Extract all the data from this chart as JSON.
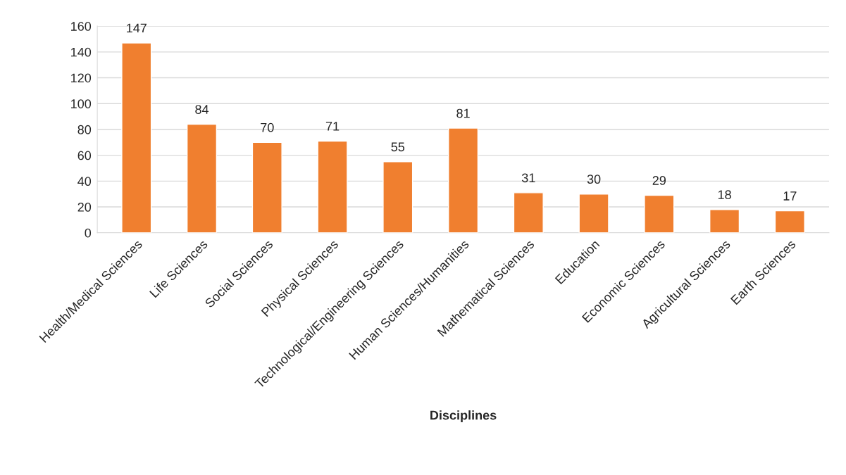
{
  "chart_data": {
    "type": "bar",
    "xlabel": "Disciplines",
    "categories": [
      "Health/Medical Sciences",
      "Life Sciences",
      "Social Sciences",
      "Physical Sciences",
      "Technological/Engineering Sciences",
      "Human Sciences/Humanities",
      "Mathematical Sciences",
      "Education",
      "Economic Sciences",
      "Agricultural Sciences",
      "Earth Sciences"
    ],
    "values": [
      147,
      84,
      70,
      71,
      55,
      81,
      31,
      30,
      29,
      18,
      17
    ],
    "color": "#f07f2f",
    "ylim": [
      0,
      160
    ],
    "yticks": [
      0,
      20,
      40,
      60,
      80,
      100,
      120,
      140,
      160
    ],
    "grid": "y",
    "data_labels": true
  }
}
